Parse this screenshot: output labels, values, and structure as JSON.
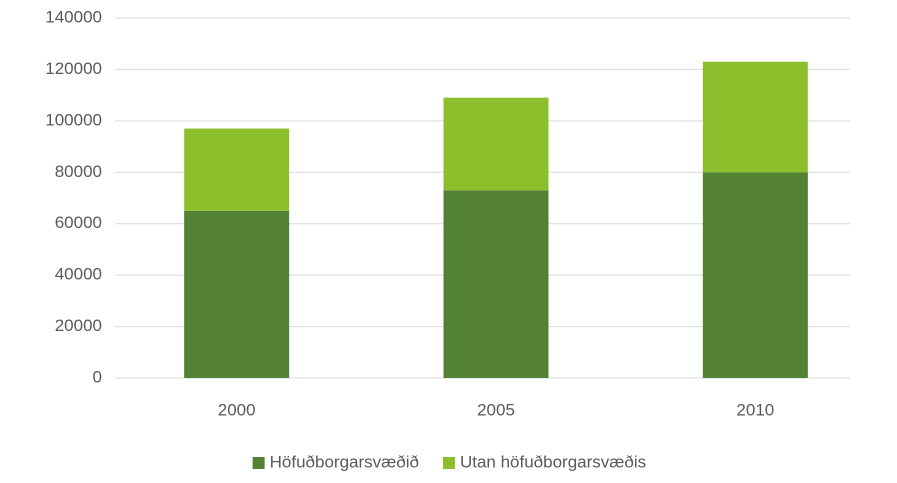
{
  "chart_data": {
    "type": "stacked_bar",
    "categories": [
      "2000",
      "2005",
      "2010"
    ],
    "series": [
      {
        "name": "Höfuðborgarsvæðið",
        "color": "#548235",
        "values": [
          65000,
          73000,
          80000
        ]
      },
      {
        "name": "Utan höfuðborgarsvæðis",
        "color": "#8dbf2d",
        "values": [
          32000,
          36000,
          43000
        ]
      }
    ],
    "ylim": [
      0,
      140000
    ],
    "yticks": [
      0,
      20000,
      40000,
      60000,
      80000,
      100000,
      120000,
      140000
    ],
    "grid": true,
    "legend": "bottom"
  }
}
